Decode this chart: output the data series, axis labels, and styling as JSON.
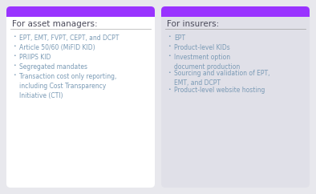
{
  "background_color": "#e8e8ed",
  "card_bg_left": "#ffffff",
  "card_bg_right": "#e0e0e8",
  "purple_bar": "#9933ff",
  "title_color": "#4a4a5a",
  "text_color": "#7a9ab5",
  "bullet_color": "#7a9ab5",
  "title_fontsize": 7.5,
  "text_fontsize": 5.5,
  "left_title": "For asset managers:",
  "right_title": "For insurers:",
  "left_items": [
    "EPT, EMT, FVPT, CEPT, and DCPT",
    "Article 50/60 (MiFID KID)",
    "PRIIPS KID",
    "Segregated mandates",
    "Transaction cost only reporting,\nincluding Cost Transparency\nInitiative (CTI)"
  ],
  "right_items": [
    "EPT",
    "Product-level KIDs",
    "Investment option\ndocument production",
    "Sourcing and validation of EPT,\nEMT, and DCPT",
    "Product-level website hosting"
  ],
  "fig_width": 3.94,
  "fig_height": 2.42,
  "dpi": 100
}
